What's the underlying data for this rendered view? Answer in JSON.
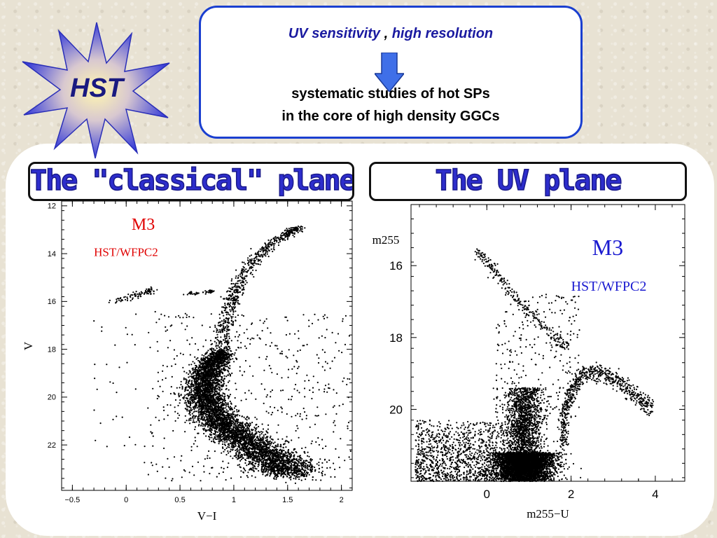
{
  "header": {
    "logo_text": "HST",
    "heading_part1": "UV sensitivity",
    "heading_comma": " , ",
    "heading_part2": "high resolution",
    "line1": "systematic studies of hot SPs",
    "line2": "in the core of high density GGCs"
  },
  "left_panel": {
    "title": "The \"classical\" plane"
  },
  "right_panel": {
    "title": "The UV plane"
  },
  "colors": {
    "blue_border": "#1a3fd0",
    "title_blue": "#2d2dcc",
    "label_red": "#e00000",
    "label_blue": "#1a1ad0",
    "star_blue": "#3a3fd8",
    "star_yellow": "#fff6b0"
  },
  "chart_data": [
    {
      "type": "scatter",
      "panel": "classical",
      "xlabel": "V−I",
      "ylabel": "V",
      "xlim": [
        -0.6,
        2.1
      ],
      "ylim": [
        23.9,
        11.8
      ],
      "x_ticks": [
        -0.5,
        0,
        0.5,
        1,
        1.5,
        2
      ],
      "x_tick_labels": [
        "−0.5",
        "0",
        "0.5",
        "1",
        "1.5",
        "2"
      ],
      "y_ticks": [
        12,
        14,
        16,
        18,
        20,
        22
      ],
      "y_tick_labels": [
        "12",
        "14",
        "16",
        "18",
        "20",
        "22"
      ],
      "annotations": [
        {
          "text": "M3",
          "color": "red",
          "x": 0.05,
          "y": 13.0
        },
        {
          "text": "HST/WFPC2",
          "color": "red",
          "x": -0.3,
          "y": 14.1
        }
      ],
      "sequences": {
        "horizontal_branch_blue": {
          "x": [
            -0.12,
            0.05,
            0.18,
            0.25
          ],
          "y": [
            16.0,
            15.8,
            15.6,
            15.55
          ]
        },
        "horizontal_branch_red": {
          "x": [
            0.55,
            0.65,
            0.75,
            0.8
          ],
          "y": [
            15.65,
            15.65,
            15.6,
            15.55
          ]
        },
        "red_giant_branch": {
          "x": [
            0.88,
            0.92,
            0.96,
            1.02,
            1.1,
            1.2,
            1.35,
            1.5,
            1.6
          ],
          "y": [
            17.9,
            17.0,
            16.2,
            15.5,
            14.8,
            14.2,
            13.6,
            13.15,
            12.9
          ]
        },
        "subgiant_to_ms": {
          "x": [
            0.9,
            0.82,
            0.76,
            0.72,
            0.74,
            0.82,
            0.95,
            1.1,
            1.25,
            1.42,
            1.55
          ],
          "y": [
            18.1,
            18.5,
            19.0,
            19.6,
            20.2,
            20.8,
            21.3,
            21.8,
            22.3,
            22.8,
            23.2
          ]
        }
      },
      "approx_points": 9000
    },
    {
      "type": "scatter",
      "panel": "uv",
      "xlabel": "m255−U",
      "ylabel": "m255",
      "xlim": [
        -1.8,
        4.7
      ],
      "ylim": [
        22.0,
        14.3
      ],
      "x_ticks": [
        0,
        2,
        4
      ],
      "x_tick_labels": [
        "0",
        "2",
        "4"
      ],
      "y_ticks": [
        16,
        18,
        20
      ],
      "y_tick_labels": [
        "16",
        "18",
        "20"
      ],
      "annotations": [
        {
          "text": "M3",
          "color": "blue",
          "x": 2.5,
          "y": 15.7
        },
        {
          "text": "HST/WFPC2",
          "color": "blue",
          "x": 2.0,
          "y": 16.7
        }
      ],
      "sequences": {
        "horizontal_branch": {
          "x": [
            -0.25,
            0.0,
            0.3,
            0.6,
            0.95,
            1.3,
            1.6,
            1.9
          ],
          "y": [
            15.6,
            15.9,
            16.3,
            16.8,
            17.2,
            17.6,
            18.0,
            18.3
          ]
        },
        "red_giant_branch": {
          "x": [
            1.8,
            1.85,
            2.0,
            2.3,
            2.7,
            3.1,
            3.5,
            3.9
          ],
          "y": [
            21.0,
            20.2,
            19.5,
            19.0,
            19.0,
            19.2,
            19.6,
            20.0
          ]
        },
        "main_sequence_blob": {
          "x_center": 0.9,
          "y_center": 21.2
        }
      },
      "approx_points": 9000
    }
  ]
}
